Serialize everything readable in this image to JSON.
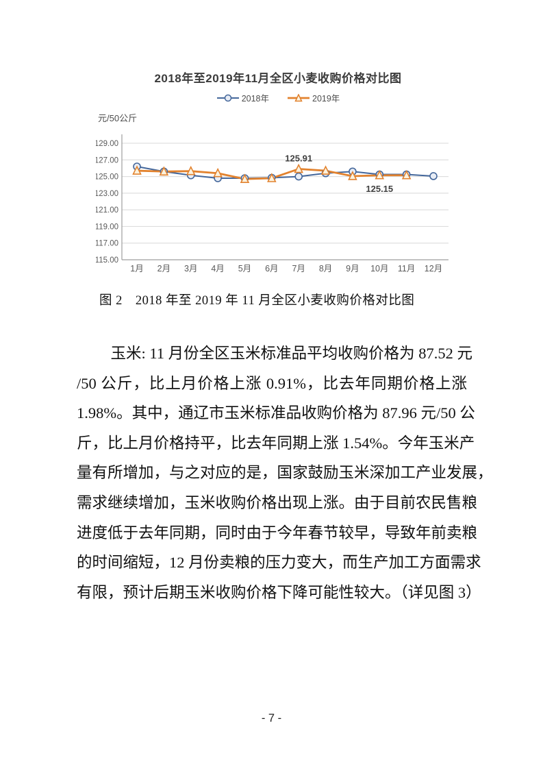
{
  "chart_data": {
    "type": "line",
    "title": "2018年至2019年11月全区小麦收购价格对比图",
    "unit_label": "元/50公斤",
    "categories": [
      "1月",
      "2月",
      "3月",
      "4月",
      "5月",
      "6月",
      "7月",
      "8月",
      "9月",
      "10月",
      "11月",
      "12月"
    ],
    "series": [
      {
        "name": "2018年",
        "marker": "circle",
        "color": "#44679B",
        "marker_fill": "#E8EDF5",
        "line_width": 2,
        "values": [
          126.2,
          125.6,
          125.15,
          124.8,
          124.8,
          124.85,
          125.0,
          125.4,
          125.6,
          125.25,
          125.25,
          125.05
        ]
      },
      {
        "name": "2019年",
        "marker": "triangle",
        "color": "#E2822E",
        "marker_fill": "#FBF2DE",
        "line_width": 2.8,
        "values": [
          125.7,
          125.6,
          125.65,
          125.4,
          124.7,
          124.8,
          125.91,
          125.7,
          125.05,
          125.15,
          125.15,
          null
        ]
      }
    ],
    "ylim": [
      115,
      129
    ],
    "ytick_step": 2,
    "ytick_labels": [
      "115.00",
      "117.00",
      "119.00",
      "121.00",
      "123.00",
      "125.00",
      "127.00",
      "129.00"
    ],
    "grid": true,
    "legend_position": "top",
    "annotations": [
      {
        "text": "125.91",
        "series_index": 1,
        "category_index": 6,
        "placement": "above"
      },
      {
        "text": "125.15",
        "series_index": 1,
        "category_index": 9,
        "placement": "below"
      }
    ],
    "colors": {
      "grid": "#D8D8D8",
      "axis": "#9E9E9E",
      "tick_label": "#595959",
      "annotation": "#404040"
    }
  },
  "figure": {
    "caption": "图 2　2018 年至 2019 年 11 月全区小麦收购价格对比图"
  },
  "paragraph": {
    "lines": [
      "玉米: 11 月份全区玉米标准品平均收购价格为 87.52 元",
      "/50 公斤，比上月价格上涨 0.91%，比去年同期价格上涨",
      "1.98%。其中，通辽市玉米标准品收购价格为 87.96 元/50 公",
      "斤，比上月价格持平，比去年同期上涨 1.54%。今年玉米产",
      "量有所增加，与之对应的是，国家鼓励玉米深加工产业发展，",
      "需求继续增加，玉米收购价格出现上涨。由于目前农民售粮",
      "进度低于去年同期，同时由于今年春节较早，导致年前卖粮",
      "的时间缩短，12 月份卖粮的压力变大，而生产加工方面需求",
      "有限，预计后期玉米收购价格下降可能性较大。（详见图 3）"
    ]
  },
  "page": {
    "number_label": "- 7 -"
  }
}
